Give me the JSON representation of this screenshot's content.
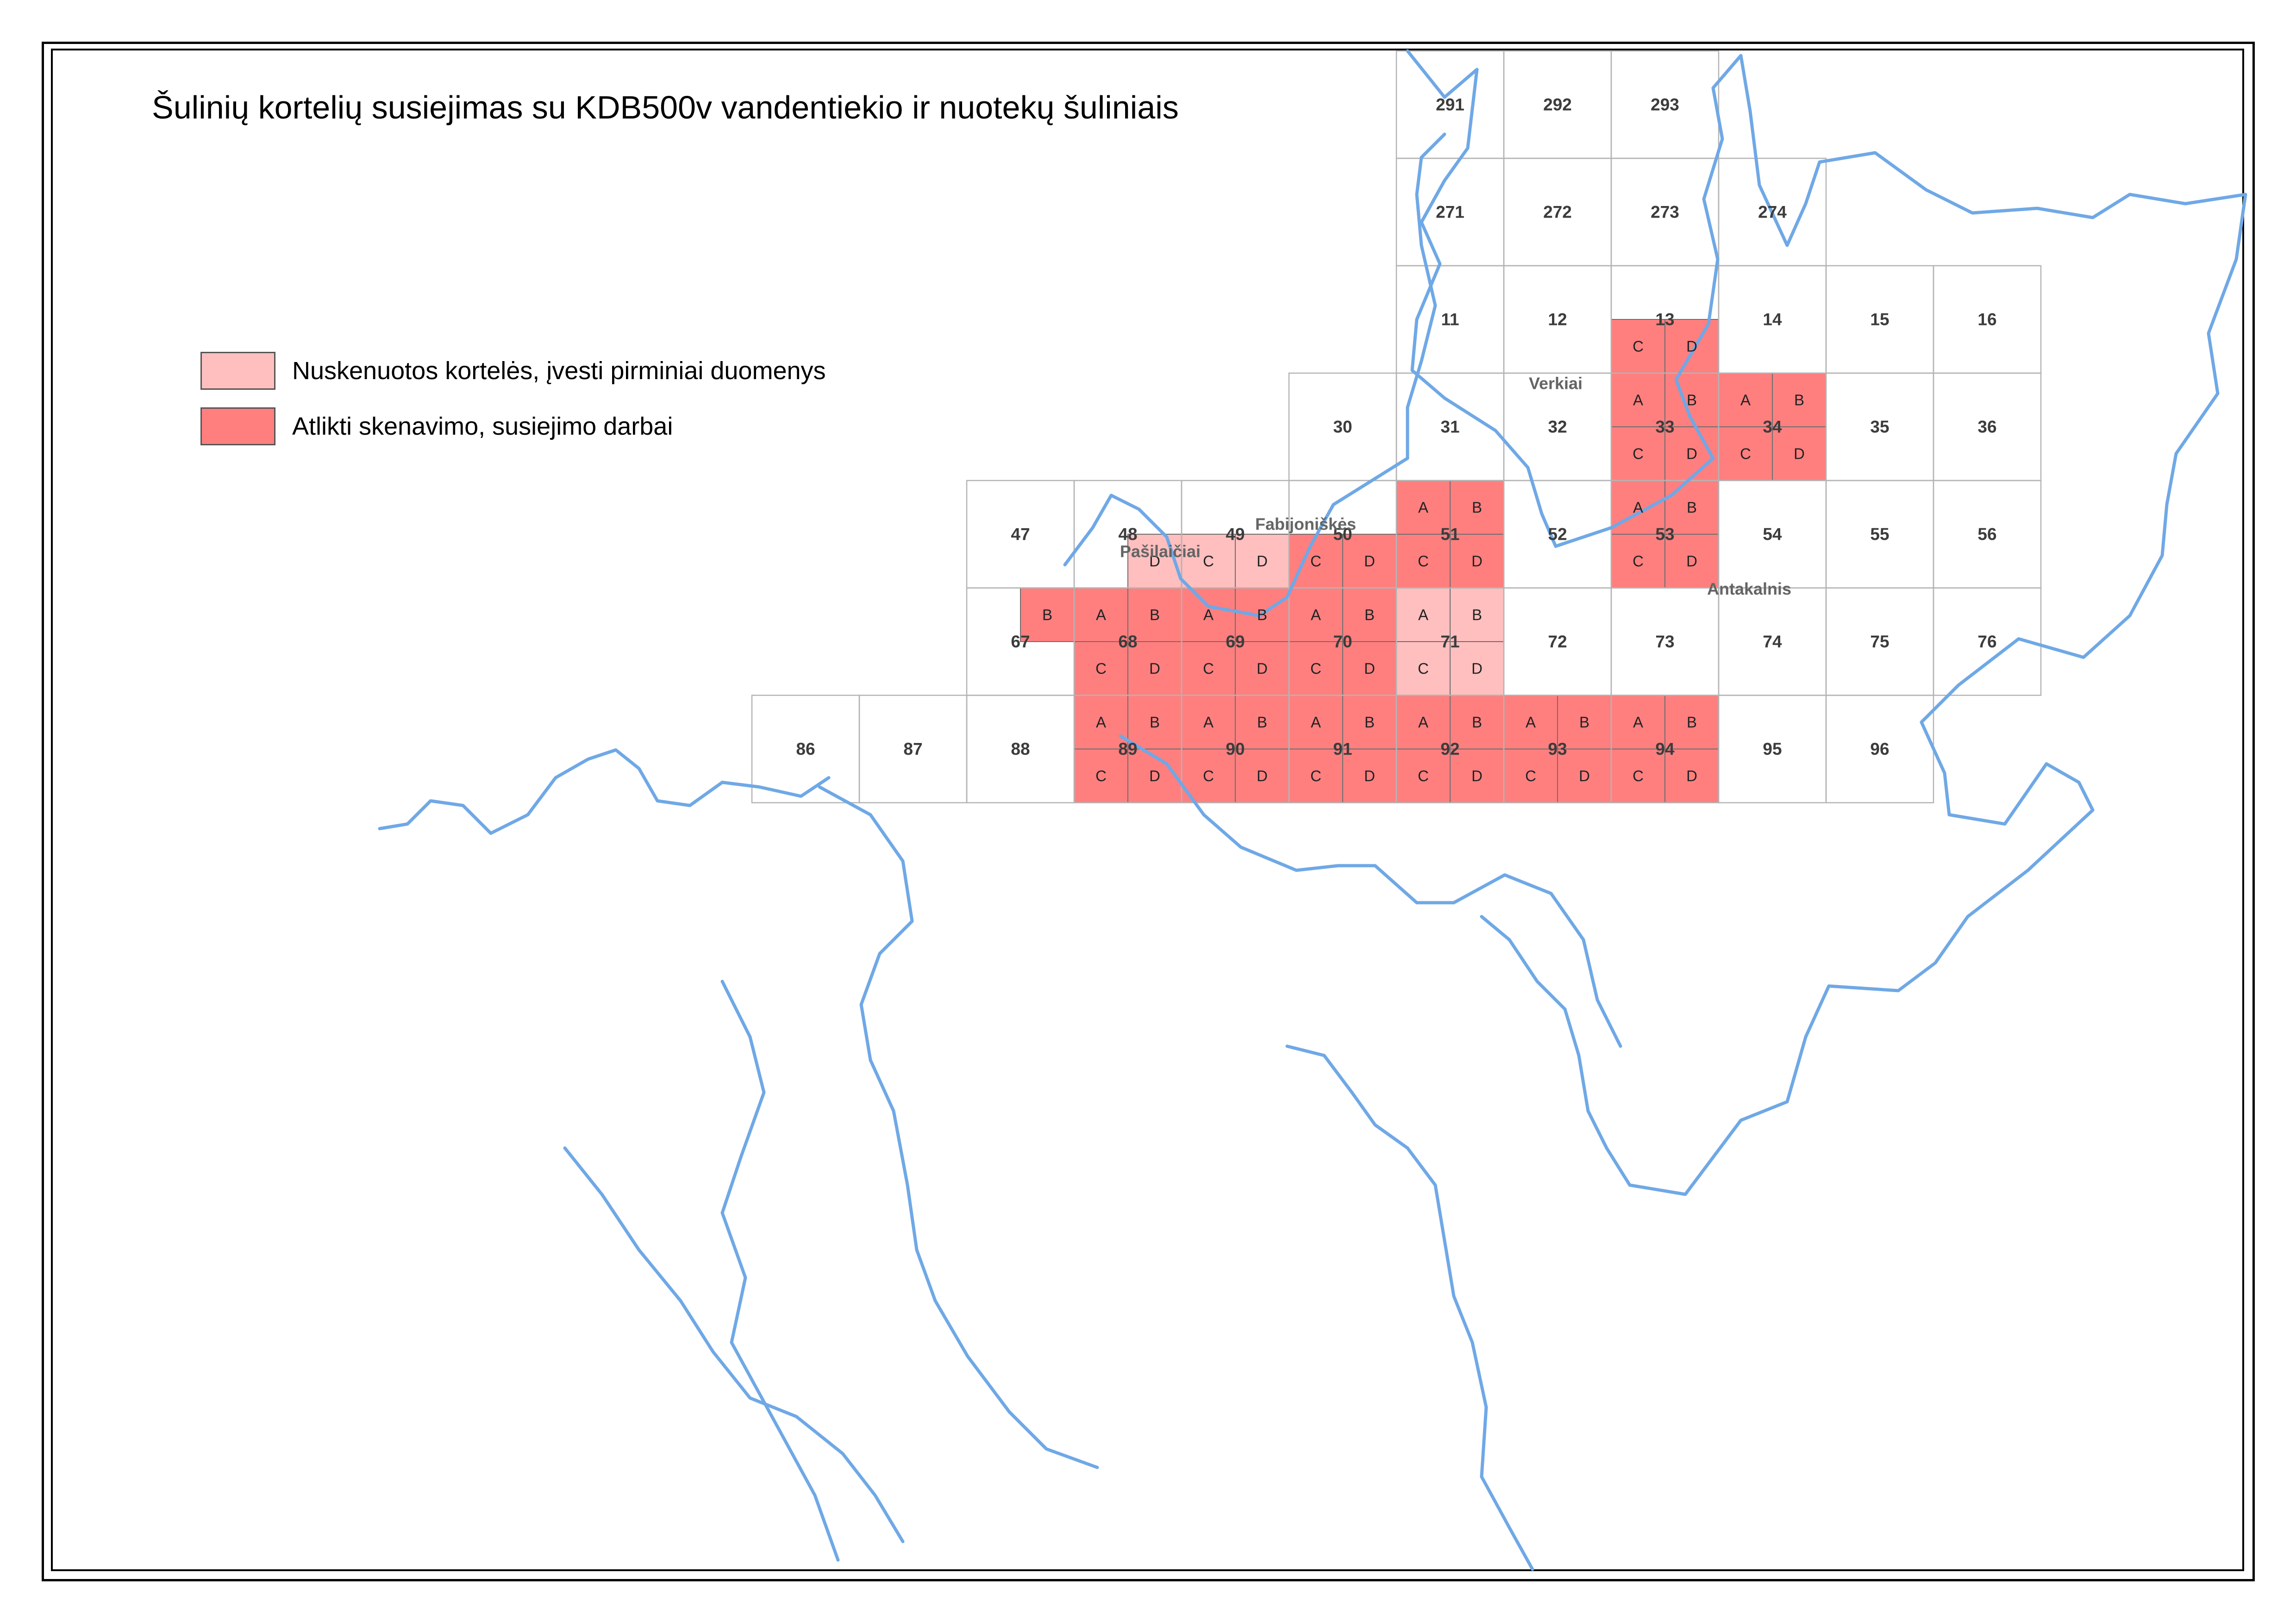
{
  "title": "Šulinių kortelių susiejimas su KDB500v vandentiekio ir nuotekų šuliniais",
  "legend": [
    {
      "label": "Nuskenuotos kortelės, įvesti pirminiai duomenys",
      "color": "#ffbfbf"
    },
    {
      "label": "Atlikti skenavimo, susiejimo darbai",
      "color": "#ff7f7f"
    }
  ],
  "colors": {
    "scanned": "#ffbfbf",
    "linked": "#ff7f7f",
    "boundary": "#6fa8e6",
    "grid": "#b4b4b4"
  },
  "grid": {
    "min_col": 0,
    "max_col": 14,
    "min_row": 0,
    "max_row": 14
  },
  "sheets": [
    {
      "n": "291",
      "r": 0,
      "c": 8
    },
    {
      "n": "292",
      "r": 0,
      "c": 9
    },
    {
      "n": "293",
      "r": 0,
      "c": 10
    },
    {
      "n": "271",
      "r": 1,
      "c": 8
    },
    {
      "n": "272",
      "r": 1,
      "c": 9
    },
    {
      "n": "273",
      "r": 1,
      "c": 10
    },
    {
      "n": "274",
      "r": 1,
      "c": 11
    },
    {
      "n": "11",
      "r": 2,
      "c": 8
    },
    {
      "n": "12",
      "r": 2,
      "c": 9
    },
    {
      "n": "13",
      "r": 2,
      "c": 10,
      "q": {
        "C": "L",
        "D": "L"
      }
    },
    {
      "n": "14",
      "r": 2,
      "c": 11
    },
    {
      "n": "15",
      "r": 2,
      "c": 12
    },
    {
      "n": "16",
      "r": 2,
      "c": 13
    },
    {
      "n": "30",
      "r": 3,
      "c": 7
    },
    {
      "n": "31",
      "r": 3,
      "c": 8
    },
    {
      "n": "32",
      "r": 3,
      "c": 9
    },
    {
      "n": "33",
      "r": 3,
      "c": 10,
      "q": {
        "A": "L",
        "B": "L",
        "C": "L",
        "D": "L"
      }
    },
    {
      "n": "34",
      "r": 3,
      "c": 11,
      "q": {
        "A": "L",
        "B": "L",
        "C": "L",
        "D": "L"
      }
    },
    {
      "n": "35",
      "r": 3,
      "c": 12
    },
    {
      "n": "36",
      "r": 3,
      "c": 13
    },
    {
      "n": "47",
      "r": 4,
      "c": 4
    },
    {
      "n": "48",
      "r": 4,
      "c": 5,
      "q": {
        "D": "S"
      }
    },
    {
      "n": "49",
      "r": 4,
      "c": 6,
      "q": {
        "C": "S",
        "D": "S"
      }
    },
    {
      "n": "50",
      "r": 4,
      "c": 7,
      "q": {
        "C": "L",
        "D": "L"
      }
    },
    {
      "n": "51",
      "r": 4,
      "c": 8,
      "q": {
        "A": "L",
        "B": "L",
        "C": "L",
        "D": "L"
      }
    },
    {
      "n": "52",
      "r": 4,
      "c": 9
    },
    {
      "n": "53",
      "r": 4,
      "c": 10,
      "q": {
        "A": "L",
        "B": "L",
        "C": "L",
        "D": "L"
      }
    },
    {
      "n": "54",
      "r": 4,
      "c": 11
    },
    {
      "n": "55",
      "r": 4,
      "c": 12
    },
    {
      "n": "56",
      "r": 4,
      "c": 13
    },
    {
      "n": "67",
      "r": 5,
      "c": 4,
      "q": {
        "B": "L"
      }
    },
    {
      "n": "68",
      "r": 5,
      "c": 5,
      "q": {
        "A": "L",
        "B": "L",
        "C": "L",
        "D": "L"
      }
    },
    {
      "n": "69",
      "r": 5,
      "c": 6,
      "q": {
        "A": "L",
        "B": "L",
        "C": "L",
        "D": "L"
      }
    },
    {
      "n": "70",
      "r": 5,
      "c": 7,
      "q": {
        "A": "L",
        "B": "L",
        "C": "L",
        "D": "L"
      }
    },
    {
      "n": "71",
      "r": 5,
      "c": 8,
      "q": {
        "A": "S",
        "B": "S",
        "C": "S",
        "D": "S"
      }
    },
    {
      "n": "72",
      "r": 5,
      "c": 9
    },
    {
      "n": "73",
      "r": 5,
      "c": 10
    },
    {
      "n": "74",
      "r": 5,
      "c": 11
    },
    {
      "n": "75",
      "r": 5,
      "c": 12
    },
    {
      "n": "76",
      "r": 5,
      "c": 13
    },
    {
      "n": "86",
      "r": 6,
      "c": 2
    },
    {
      "n": "87",
      "r": 6,
      "c": 3
    },
    {
      "n": "88",
      "r": 6,
      "c": 4
    },
    {
      "n": "89",
      "r": 6,
      "c": 5,
      "q": {
        "A": "L",
        "B": "L",
        "C": "L",
        "D": "L"
      }
    },
    {
      "n": "90",
      "r": 6,
      "c": 6,
      "q": {
        "A": "L",
        "B": "L",
        "C": "L",
        "D": "L"
      }
    },
    {
      "n": "91",
      "r": 6,
      "c": 7,
      "q": {
        "A": "L",
        "B": "L",
        "C": "L",
        "D": "L"
      }
    },
    {
      "n": "92",
      "r": 6,
      "c": 8,
      "q": {
        "A": "L",
        "B": "L",
        "C": "L",
        "D": "L"
      }
    },
    {
      "n": "93",
      "r": 6,
      "c": 9,
      "q": {
        "A": "L",
        "B": "L",
        "C": "L",
        "D": "L"
      }
    },
    {
      "n": "94",
      "r": 6,
      "c": 10,
      "q": {
        "A": "L",
        "B": "L",
        "C": "L",
        "D": "L"
      }
    },
    {
      "n": "95",
      "r": 6,
      "c": 11
    },
    {
      "n": "96",
      "r": 6,
      "c": 12
    }
  ]
}
